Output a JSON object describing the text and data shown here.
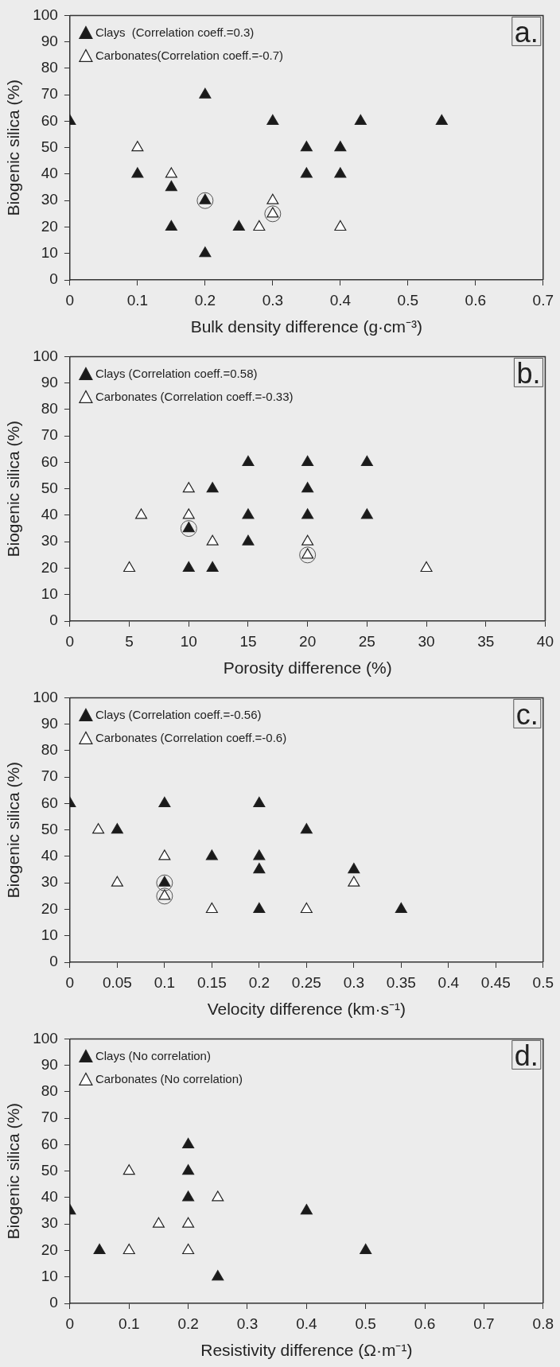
{
  "chart_data": [
    {
      "type": "scatter",
      "xlabel": "Bulk density difference (g·cm⁻³)",
      "ylabel": "Biogenic silica (%)",
      "xlim": [
        0,
        0.7
      ],
      "xticks": [
        0,
        0.1,
        0.2,
        0.3,
        0.4,
        0.5,
        0.6,
        0.7
      ],
      "ylim": [
        0,
        100
      ],
      "yticks": [
        0,
        10,
        20,
        30,
        40,
        50,
        60,
        70,
        80,
        90,
        100
      ],
      "grid": false,
      "legend": "top left",
      "marker": "triangle",
      "annotations": [
        "a."
      ],
      "series": [
        {
          "name": "Clays  (Correlation coeff.=0.3)",
          "color": "#1a1a1a",
          "x": [
            0,
            0.1,
            0.15,
            0.15,
            0.2,
            0.2,
            0.2,
            0.25,
            0.3,
            0.35,
            0.35,
            0.4,
            0.4,
            0.43,
            0.55
          ],
          "values": [
            60,
            40,
            35,
            20,
            70,
            30,
            10,
            20,
            60,
            50,
            40,
            50,
            40,
            60,
            60
          ]
        },
        {
          "name": "Carbonates(Correlation coeff.=-0.7)",
          "color": "#ffffff",
          "x": [
            0.1,
            0.15,
            0.28,
            0.3,
            0.3,
            0.4
          ],
          "values": [
            50,
            40,
            20,
            30,
            25,
            20
          ]
        },
        {
          "marker": "circle",
          "color": "#555555",
          "x": [
            0.2,
            0.3
          ],
          "values": [
            30,
            25
          ]
        }
      ]
    },
    {
      "type": "scatter",
      "xlabel": "Porosity difference (%)",
      "ylabel": "Biogenic silica (%)",
      "xlim": [
        0,
        40
      ],
      "xticks": [
        0,
        5,
        10,
        15,
        20,
        25,
        30,
        35,
        40
      ],
      "ylim": [
        0,
        100
      ],
      "yticks": [
        0,
        10,
        20,
        30,
        40,
        50,
        60,
        70,
        80,
        90,
        100
      ],
      "grid": false,
      "legend": "top left",
      "marker": "triangle",
      "annotations": [
        "b."
      ],
      "series": [
        {
          "name": "Clays (Correlation coeff.=0.58)",
          "color": "#1a1a1a",
          "x": [
            10,
            10,
            12,
            12,
            15,
            15,
            15,
            20,
            20,
            20,
            25,
            25
          ],
          "values": [
            35,
            20,
            50,
            20,
            60,
            40,
            30,
            60,
            50,
            40,
            60,
            40
          ]
        },
        {
          "name": "Carbonates (Correlation coeff.=-0.33)",
          "color": "#ffffff",
          "x": [
            5,
            6,
            10,
            10,
            12,
            20,
            20,
            30
          ],
          "values": [
            20,
            40,
            50,
            40,
            30,
            30,
            25,
            20
          ]
        },
        {
          "marker": "circle",
          "color": "#555555",
          "x": [
            10,
            20
          ],
          "values": [
            35,
            25
          ]
        }
      ]
    },
    {
      "type": "scatter",
      "xlabel": "Velocity difference (km·s⁻¹)",
      "ylabel": "Biogenic silica (%)",
      "xlim": [
        0,
        0.5
      ],
      "xticks": [
        0,
        0.05,
        0.1,
        0.15,
        0.2,
        0.25,
        0.3,
        0.35,
        0.4,
        0.45,
        0.5
      ],
      "ylim": [
        0,
        100
      ],
      "yticks": [
        0,
        10,
        20,
        30,
        40,
        50,
        60,
        70,
        80,
        90,
        100
      ],
      "grid": false,
      "legend": "top left",
      "marker": "triangle",
      "annotations": [
        "c."
      ],
      "series": [
        {
          "name": "Clays (Correlation coeff.=-0.56)",
          "color": "#1a1a1a",
          "x": [
            0,
            0.05,
            0.1,
            0.1,
            0.15,
            0.2,
            0.2,
            0.2,
            0.2,
            0.25,
            0.3,
            0.35
          ],
          "values": [
            60,
            50,
            60,
            30,
            40,
            60,
            40,
            35,
            20,
            50,
            35,
            20
          ]
        },
        {
          "name": "Carbonates (Correlation coeff.=-0.6)",
          "color": "#ffffff",
          "x": [
            0.03,
            0.05,
            0.1,
            0.1,
            0.15,
            0.25,
            0.3
          ],
          "values": [
            50,
            30,
            40,
            25,
            20,
            20,
            30
          ]
        },
        {
          "marker": "circle",
          "color": "#555555",
          "x": [
            0.1,
            0.1
          ],
          "values": [
            30,
            25
          ]
        }
      ]
    },
    {
      "type": "scatter",
      "xlabel": "Resistivity difference (Ω·m⁻¹)",
      "ylabel": "Biogenic silica (%)",
      "xlim": [
        0,
        0.8
      ],
      "xticks": [
        0,
        0.1,
        0.2,
        0.3,
        0.4,
        0.5,
        0.6,
        0.7,
        0.8
      ],
      "ylim": [
        0,
        100
      ],
      "yticks": [
        0,
        10,
        20,
        30,
        40,
        50,
        60,
        70,
        80,
        90,
        100
      ],
      "grid": false,
      "legend": "top left",
      "marker": "triangle",
      "annotations": [
        "d."
      ],
      "series": [
        {
          "name": "Clays (No correlation)",
          "color": "#1a1a1a",
          "x": [
            0,
            0.05,
            0.2,
            0.2,
            0.2,
            0.25,
            0.4,
            0.5
          ],
          "values": [
            35,
            20,
            60,
            50,
            40,
            10,
            35,
            20
          ]
        },
        {
          "name": "Carbonates (No correlation)",
          "color": "#ffffff",
          "x": [
            0.1,
            0.1,
            0.15,
            0.2,
            0.2,
            0.25
          ],
          "values": [
            50,
            20,
            30,
            30,
            20,
            40
          ]
        }
      ]
    }
  ]
}
